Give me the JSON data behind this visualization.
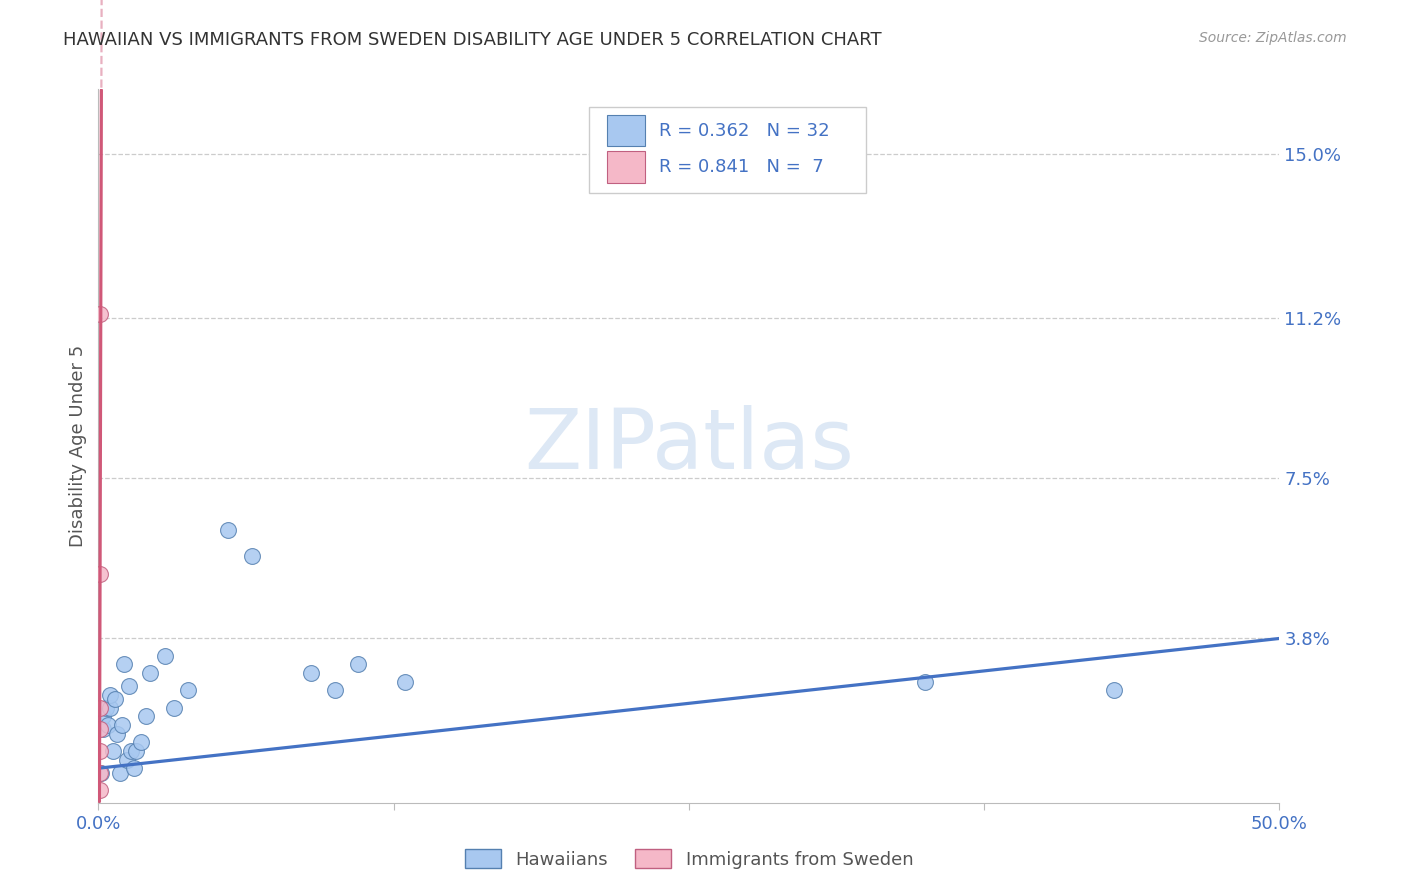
{
  "title": "HAWAIIAN VS IMMIGRANTS FROM SWEDEN DISABILITY AGE UNDER 5 CORRELATION CHART",
  "source": "Source: ZipAtlas.com",
  "ylabel": "Disability Age Under 5",
  "ylabel_tick_labels": [
    "15.0%",
    "11.2%",
    "7.5%",
    "3.8%"
  ],
  "ylabel_tick_vals": [
    0.15,
    0.112,
    0.075,
    0.038
  ],
  "xlim": [
    0.0,
    0.5
  ],
  "ylim": [
    0.0,
    0.165
  ],
  "hawaiians_x": [
    0.001,
    0.002,
    0.002,
    0.003,
    0.004,
    0.005,
    0.005,
    0.006,
    0.007,
    0.008,
    0.009,
    0.01,
    0.011,
    0.012,
    0.013,
    0.014,
    0.015,
    0.016,
    0.018,
    0.02,
    0.022,
    0.028,
    0.032,
    0.038,
    0.055,
    0.065,
    0.09,
    0.1,
    0.11,
    0.13,
    0.35,
    0.43
  ],
  "hawaiians_y": [
    0.007,
    0.017,
    0.02,
    0.022,
    0.018,
    0.022,
    0.025,
    0.012,
    0.024,
    0.016,
    0.007,
    0.018,
    0.032,
    0.01,
    0.027,
    0.012,
    0.008,
    0.012,
    0.014,
    0.02,
    0.03,
    0.034,
    0.022,
    0.026,
    0.063,
    0.057,
    0.03,
    0.026,
    0.032,
    0.028,
    0.028,
    0.026
  ],
  "sweden_x": [
    0.0005,
    0.0005,
    0.0005,
    0.0005,
    0.0005,
    0.0005,
    0.0005
  ],
  "sweden_y": [
    0.003,
    0.007,
    0.012,
    0.017,
    0.022,
    0.053,
    0.113
  ],
  "blue_R": 0.362,
  "blue_N": 32,
  "pink_R": 0.841,
  "pink_N": 7,
  "blue_line_x0": 0.0,
  "blue_line_y0": 0.008,
  "blue_line_x1": 0.5,
  "blue_line_y1": 0.038,
  "pink_slope": 200.0,
  "pink_intercept": -0.085,
  "color_blue_fill": "#a8c8f0",
  "color_blue_edge": "#5580b0",
  "color_blue_line": "#4472c4",
  "color_pink_fill": "#f5b8c8",
  "color_pink_edge": "#c06080",
  "color_pink_line": "#d05878",
  "color_pink_dash": "#e8b0c0",
  "color_axis_text": "#4472c4",
  "color_title": "#333333",
  "color_source": "#999999",
  "color_grid": "#cccccc",
  "color_spine": "#bbbbbb",
  "watermark_color": "#dde8f5",
  "background": "#ffffff"
}
